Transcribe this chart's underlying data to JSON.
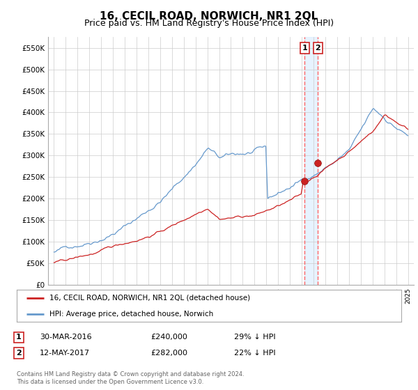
{
  "title": "16, CECIL ROAD, NORWICH, NR1 2QL",
  "subtitle": "Price paid vs. HM Land Registry's House Price Index (HPI)",
  "title_fontsize": 11,
  "subtitle_fontsize": 9,
  "ylabel_ticks": [
    "£0",
    "£50K",
    "£100K",
    "£150K",
    "£200K",
    "£250K",
    "£300K",
    "£350K",
    "£400K",
    "£450K",
    "£500K",
    "£550K"
  ],
  "ylabel_values": [
    0,
    50000,
    100000,
    150000,
    200000,
    250000,
    300000,
    350000,
    400000,
    450000,
    500000,
    550000
  ],
  "hpi_color": "#6699cc",
  "price_color": "#cc2222",
  "marker_color": "#cc2222",
  "vline_color": "#ff6666",
  "shade_color": "#ddeeff",
  "grid_color": "#cccccc",
  "bg_color": "#ffffff",
  "sale1_date": 2016.25,
  "sale1_price": 240000,
  "sale2_date": 2017.37,
  "sale2_price": 282000,
  "legend1_label": "16, CECIL ROAD, NORWICH, NR1 2QL (detached house)",
  "legend2_label": "HPI: Average price, detached house, Norwich",
  "annot1_date": "30-MAR-2016",
  "annot1_price": "£240,000",
  "annot1_pct": "29% ↓ HPI",
  "annot2_date": "12-MAY-2017",
  "annot2_price": "£282,000",
  "annot2_pct": "22% ↓ HPI",
  "footer": "Contains HM Land Registry data © Crown copyright and database right 2024.\nThis data is licensed under the Open Government Licence v3.0.",
  "xmin": 1994.5,
  "xmax": 2025.5,
  "ymin": 0,
  "ymax": 575000
}
